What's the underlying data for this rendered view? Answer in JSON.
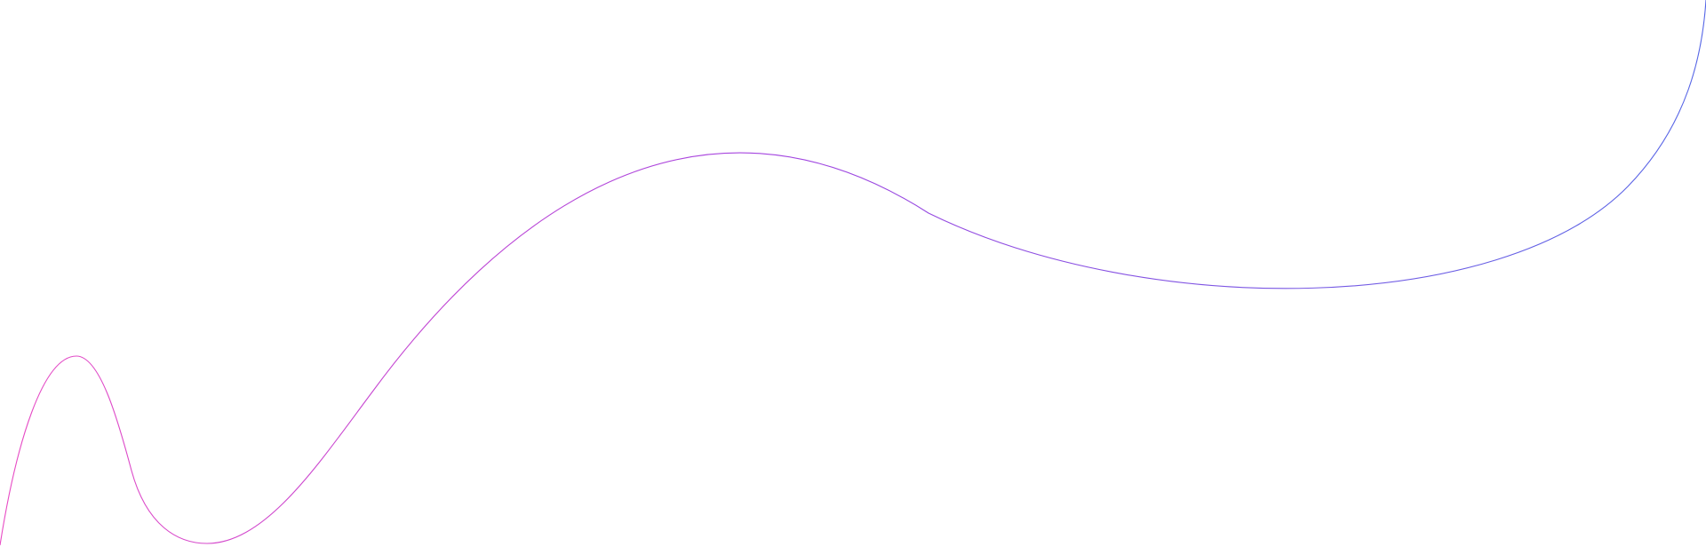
{
  "decoration": {
    "shape": "wavy-line",
    "colors": {
      "start": "#e84bc4",
      "middle": "#a445e0",
      "end": "#5566e6",
      "background": "#ffffff"
    }
  }
}
